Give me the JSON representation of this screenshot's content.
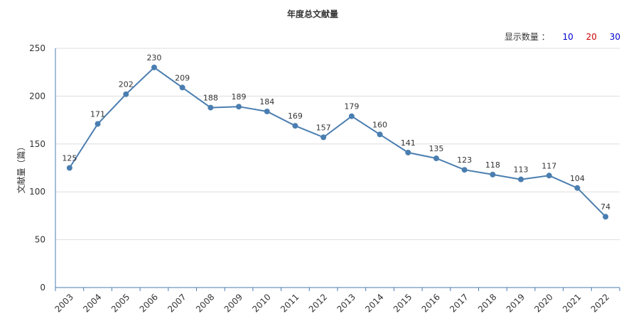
{
  "chart_data": {
    "type": "line",
    "title": "年度总文献量",
    "ylabel": "文献量（篇）",
    "xlabel": "",
    "ylim": [
      0,
      250
    ],
    "yticks": [
      0,
      50,
      100,
      150,
      200,
      250
    ],
    "grid": true,
    "categories": [
      "2003",
      "2004",
      "2005",
      "2006",
      "2007",
      "2008",
      "2009",
      "2010",
      "2011",
      "2012",
      "2013",
      "2014",
      "2015",
      "2016",
      "2017",
      "2018",
      "2019",
      "2020",
      "2021",
      "2022"
    ],
    "values": [
      125,
      171,
      202,
      230,
      209,
      188,
      189,
      184,
      169,
      157,
      179,
      160,
      141,
      135,
      123,
      118,
      113,
      117,
      104,
      74
    ],
    "line_color": "#4a7eb0"
  },
  "display_count": {
    "label": "显示数量 ：",
    "options": [
      {
        "value": "10",
        "color": "#0000cc"
      },
      {
        "value": "20",
        "color": "#cc0000"
      },
      {
        "value": "30",
        "color": "#0000cc"
      }
    ]
  }
}
